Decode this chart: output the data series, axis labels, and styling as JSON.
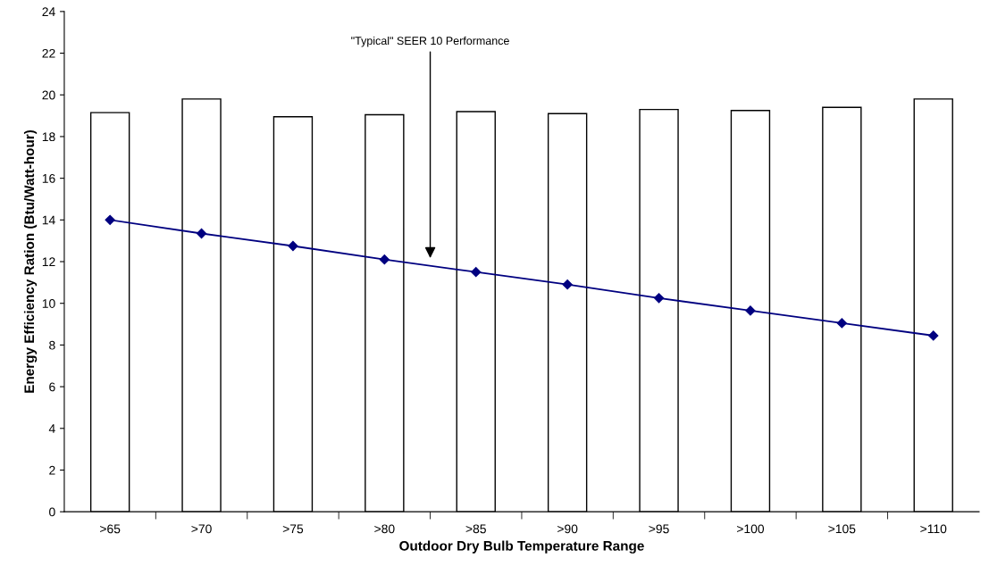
{
  "chart_data": {
    "type": "bar",
    "xlabel": "Outdoor Dry Bulb Temperature Range",
    "ylabel": "Energy Efficiency Ration (Btu/Watt-hour)",
    "categories": [
      ">65",
      ">70",
      ">75",
      ">80",
      ">85",
      ">90",
      ">95",
      ">100",
      ">105",
      ">110"
    ],
    "series": [
      {
        "color": "#ffffff",
        "values": [
          19.15,
          19.8,
          18.95,
          19.05,
          19.2,
          19.1,
          19.3,
          19.25,
          19.4,
          19.8
        ]
      },
      {
        "type": "line",
        "color": "#000080",
        "marker": "diamond",
        "values": [
          14.0,
          13.35,
          12.75,
          12.1,
          11.5,
          10.9,
          10.25,
          9.65,
          9.05,
          8.45
        ]
      }
    ],
    "ylim": [
      0,
      24
    ],
    "yticks": [
      0,
      2,
      4,
      6,
      8,
      10,
      12,
      14,
      16,
      18,
      20,
      22,
      24
    ],
    "annotations": [
      "\"Typical\" SEER 10 Performance"
    ],
    "grid": false,
    "legend": false
  }
}
